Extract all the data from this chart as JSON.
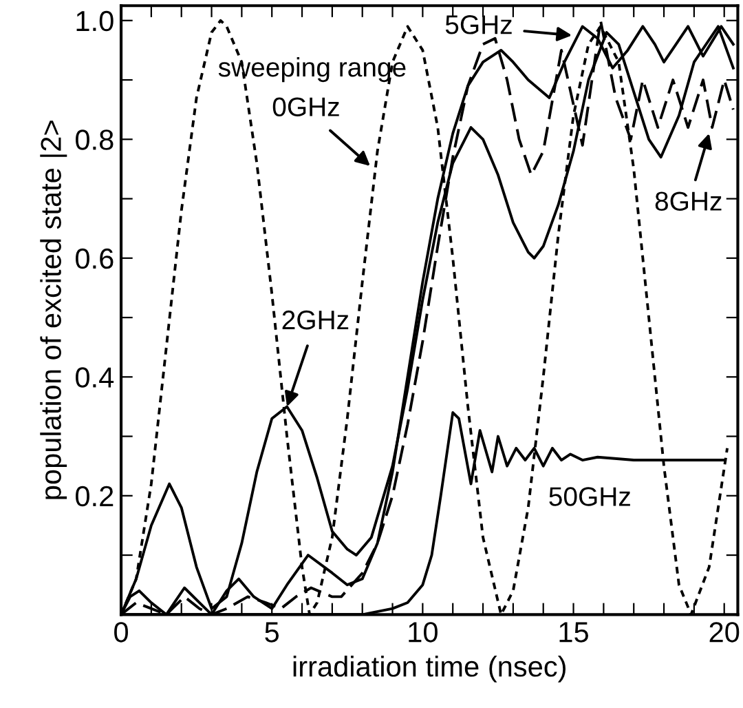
{
  "chart_data": {
    "type": "line",
    "xlabel": "irradiation time (nsec)",
    "ylabel": "population of excited state |2>",
    "xlim": [
      0,
      20.45
    ],
    "ylim": [
      0,
      1.025
    ],
    "xticks": [
      0,
      {
        "value": 1,
        "label": null
      },
      {
        "value": 2,
        "label": null
      },
      {
        "value": 3,
        "label": null
      },
      {
        "value": 4,
        "label": null
      },
      5,
      {
        "value": 6,
        "label": null
      },
      {
        "value": 7,
        "label": null
      },
      {
        "value": 8,
        "label": null
      },
      {
        "value": 9,
        "label": null
      },
      10,
      {
        "value": 11,
        "label": null
      },
      {
        "value": 12,
        "label": null
      },
      {
        "value": 13,
        "label": null
      },
      {
        "value": 14,
        "label": null
      },
      15,
      {
        "value": 16,
        "label": null
      },
      {
        "value": 17,
        "label": null
      },
      {
        "value": 18,
        "label": null
      },
      {
        "value": 19,
        "label": null
      },
      20
    ],
    "yticks": [
      {
        "value": 0,
        "label": null
      },
      {
        "value": 0.1,
        "label": null
      },
      0.2,
      {
        "value": 0.3,
        "label": null
      },
      0.4,
      {
        "value": 0.5,
        "label": null
      },
      0.6,
      {
        "value": 0.7,
        "label": null
      },
      0.8,
      {
        "value": 0.9,
        "label": null
      },
      {
        "value": 1,
        "label": "1.0"
      }
    ],
    "grid": false,
    "legend": false,
    "marker": "none",
    "series": [
      {
        "color": "#000000",
        "line_style": "dotted",
        "x": [
          0,
          0.5,
          1,
          1.5,
          2,
          2.5,
          3,
          3.3,
          3.5,
          4,
          4.5,
          5,
          5.5,
          6,
          6.25,
          6.5,
          7,
          7.5,
          8,
          8.5,
          9,
          9.5,
          10,
          10.5,
          11,
          11.5,
          12,
          12.6,
          13,
          13.5,
          14,
          14.5,
          15,
          15.5,
          15.9,
          16.5,
          17,
          17.5,
          18,
          18.5,
          18.9,
          19.5,
          20.1
        ],
        "values": [
          0,
          0.06,
          0.22,
          0.45,
          0.68,
          0.87,
          0.98,
          1.0,
          0.99,
          0.93,
          0.76,
          0.54,
          0.3,
          0.08,
          0,
          0.02,
          0.13,
          0.33,
          0.56,
          0.78,
          0.93,
          0.99,
          0.95,
          0.82,
          0.6,
          0.35,
          0.13,
          0,
          0.04,
          0.18,
          0.4,
          0.64,
          0.84,
          0.96,
          0.99,
          0.93,
          0.75,
          0.5,
          0.25,
          0.05,
          0,
          0.08,
          0.28
        ]
      },
      {
        "color": "#000000",
        "line_style": "solid",
        "x": [
          0,
          0.5,
          1,
          1.6,
          2,
          2.5,
          3,
          3.5,
          4,
          4.5,
          5,
          5.5,
          6,
          6.5,
          7,
          7.5,
          7.8,
          8.3,
          9,
          9.5,
          10,
          10.5,
          11,
          11.6,
          12,
          12.5,
          13,
          13.5,
          13.7,
          14,
          14.5,
          15,
          15.5,
          16.1,
          16.5,
          17,
          17.5,
          17.9,
          18.5,
          19,
          19.8,
          20.3
        ],
        "values": [
          0,
          0.06,
          0.15,
          0.22,
          0.18,
          0.08,
          0.01,
          0.03,
          0.12,
          0.24,
          0.33,
          0.35,
          0.31,
          0.23,
          0.14,
          0.11,
          0.1,
          0.13,
          0.25,
          0.38,
          0.53,
          0.66,
          0.76,
          0.82,
          0.8,
          0.74,
          0.66,
          0.61,
          0.6,
          0.62,
          0.69,
          0.78,
          0.9,
          0.98,
          0.96,
          0.88,
          0.8,
          0.77,
          0.84,
          0.93,
          0.99,
          0.92
        ]
      },
      {
        "color": "#000000",
        "line_style": "solid",
        "x": [
          0,
          0.3,
          0.6,
          1,
          1.5,
          2.1,
          2.6,
          3,
          3.5,
          3.9,
          4.4,
          5,
          5.5,
          6.2,
          7,
          7.5,
          8,
          8.5,
          9,
          9.5,
          10,
          10.5,
          11,
          11.5,
          12,
          12.6,
          13,
          13.5,
          14.2,
          14.7,
          15.3,
          15.8,
          16.3,
          16.8,
          17.3,
          17.7,
          18,
          18.4,
          18.8,
          19.3,
          19.9,
          20.3
        ],
        "values": [
          0,
          0.03,
          0.04,
          0.02,
          0,
          0.045,
          0.02,
          0,
          0.04,
          0.06,
          0.03,
          0.01,
          0.05,
          0.1,
          0.07,
          0.05,
          0.06,
          0.12,
          0.24,
          0.4,
          0.56,
          0.7,
          0.81,
          0.89,
          0.93,
          0.95,
          0.93,
          0.9,
          0.87,
          0.93,
          0.99,
          0.97,
          0.92,
          0.95,
          0.99,
          0.96,
          0.93,
          0.96,
          0.99,
          0.94,
          0.99,
          0.96
        ]
      },
      {
        "color": "#000000",
        "line_style": "dashed",
        "x": [
          0,
          0.5,
          1,
          1.5,
          2.1,
          2.6,
          3,
          3.5,
          4.2,
          4.8,
          5.3,
          5.8,
          6.3,
          7,
          7.3,
          8,
          8.5,
          9,
          9.5,
          10,
          10.5,
          11,
          11.5,
          12,
          12.4,
          12.8,
          13.2,
          13.6,
          14,
          14.6,
          15.3,
          15.9,
          16.4,
          16.9,
          17.3,
          17.8,
          18.3,
          18.8,
          19.3,
          19.6,
          20,
          20.3
        ],
        "values": [
          0,
          0.02,
          0.01,
          0,
          0.03,
          0.01,
          0,
          0.01,
          0.03,
          0.02,
          0.01,
          0.03,
          0.045,
          0.03,
          0.03,
          0.07,
          0.12,
          0.2,
          0.32,
          0.46,
          0.62,
          0.77,
          0.89,
          0.96,
          0.97,
          0.9,
          0.8,
          0.74,
          0.78,
          0.95,
          0.79,
          1.0,
          0.87,
          0.8,
          0.9,
          0.82,
          0.9,
          0.82,
          0.9,
          0.82,
          0.9,
          0.85
        ]
      },
      {
        "color": "#000000",
        "line_style": "solid",
        "x": [
          0,
          8,
          9,
          9.5,
          10,
          10.3,
          10.6,
          11,
          11.2,
          11.6,
          11.9,
          12.3,
          12.5,
          12.8,
          13.1,
          13.4,
          13.7,
          14,
          14.3,
          14.6,
          14.9,
          15.3,
          15.8,
          17,
          20
        ],
        "values": [
          0,
          0,
          0.01,
          0.02,
          0.05,
          0.1,
          0.2,
          0.34,
          0.33,
          0.22,
          0.31,
          0.24,
          0.3,
          0.25,
          0.28,
          0.26,
          0.28,
          0.25,
          0.28,
          0.26,
          0.27,
          0.26,
          0.265,
          0.26,
          0.26
        ]
      }
    ],
    "annotations": [
      "sweeping range",
      {
        "text": "0GHz",
        "x": 8.26,
        "y": 0.755
      },
      {
        "text": "2GHz",
        "x": 5.5,
        "y": 0.35
      },
      {
        "text": "5GHz",
        "x": 14.95,
        "y": 0.975
      },
      {
        "text": "8GHz",
        "x": 19.5,
        "y": 0.81
      },
      "50GHz"
    ]
  }
}
